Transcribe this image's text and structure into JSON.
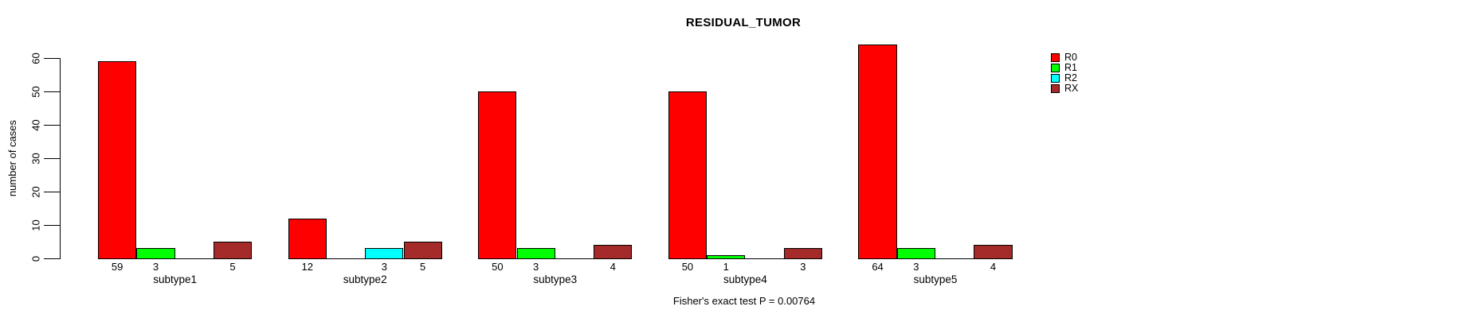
{
  "chart_data": {
    "type": "bar",
    "title": "RESIDUAL_TUMOR",
    "ylabel": "number of cases",
    "xlabel": "",
    "ylim": [
      0,
      60
    ],
    "yticks": [
      0,
      10,
      20,
      30,
      40,
      50,
      60
    ],
    "grid": false,
    "legend_position": "top-right",
    "series": [
      {
        "name": "R0",
        "color": "#FF0000"
      },
      {
        "name": "R1",
        "color": "#00FF00"
      },
      {
        "name": "R2",
        "color": "#00FFFF"
      },
      {
        "name": "RX",
        "color": "#A52A2A"
      }
    ],
    "categories": [
      "subtype1",
      "subtype2",
      "subtype3",
      "subtype4",
      "subtype5"
    ],
    "values": [
      [
        59,
        3,
        0,
        5
      ],
      [
        12,
        0,
        3,
        5
      ],
      [
        50,
        3,
        0,
        4
      ],
      [
        50,
        1,
        0,
        3
      ],
      [
        64,
        3,
        0,
        4
      ]
    ],
    "bar_labels_shown_for_zero": false,
    "footer": "Fisher's exact test P = 0.00764"
  }
}
